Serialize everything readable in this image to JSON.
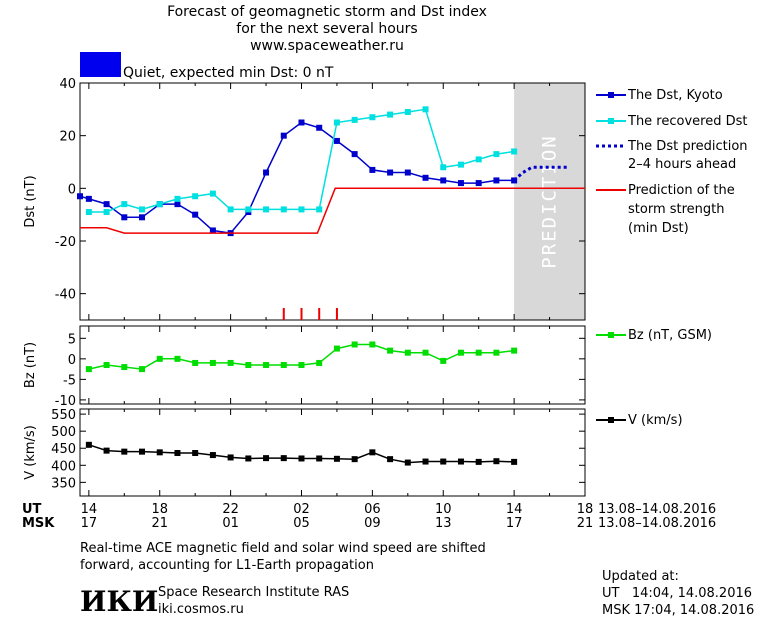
{
  "header": {
    "title_lines": [
      "Forecast of geomagnetic storm and Dst index",
      "for the next several hours",
      "www.spaceweather.ru"
    ],
    "status_text": "Quiet, expected min Dst: 0 nT",
    "status_color": "#0000ee"
  },
  "chart_data": [
    {
      "type": "line",
      "ylabel": "Dst (nT)",
      "ylim": [
        -50,
        40
      ],
      "yticks": [
        40,
        20,
        0,
        -20,
        -40
      ],
      "x_unit": "hours, UT",
      "xlim": [
        13.5,
        42
      ],
      "prediction_shade_from": 38,
      "prediction_label": "PREDICTION",
      "series": [
        {
          "name": "The Dst, Kyoto",
          "color": "#0000cc",
          "x": [
            13.5,
            14,
            15,
            16,
            17,
            18,
            19,
            20,
            21,
            22,
            23,
            24,
            25,
            26,
            27,
            28,
            29,
            30,
            31,
            32,
            33,
            34,
            35,
            36,
            37,
            38
          ],
          "values": [
            -3,
            -4,
            -6,
            -11,
            -11,
            -6,
            -6,
            -10,
            -16,
            -17,
            -9,
            6,
            20,
            25,
            23,
            18,
            13,
            7,
            6,
            6,
            4,
            3,
            2,
            2,
            3,
            3
          ]
        },
        {
          "name": "The recovered Dst",
          "color": "#00e0e0",
          "x": [
            14,
            15,
            16,
            17,
            18,
            19,
            20,
            21,
            22,
            23,
            24,
            25,
            26,
            27,
            28,
            29,
            30,
            31,
            32,
            33,
            34,
            35,
            36,
            37,
            38
          ],
          "values": [
            -9,
            -9,
            -6,
            -8,
            -6,
            -4,
            -3,
            -2,
            -8,
            -8,
            -8,
            -8,
            -8,
            -8,
            25,
            26,
            27,
            28,
            29,
            30,
            8,
            9,
            11,
            13,
            14
          ]
        },
        {
          "name": "The Dst prediction 2–4 hours ahead",
          "color": "#0000cc",
          "x": [
            38,
            38.5,
            39,
            39.5,
            40,
            40.5,
            41
          ],
          "values": [
            3,
            6,
            8,
            8,
            8,
            8,
            8
          ]
        },
        {
          "name": "Prediction of the storm strength (min Dst)",
          "color": "#ee0000",
          "x": [
            13.5,
            15,
            16,
            22,
            23,
            26.9,
            27.9,
            42
          ],
          "values": [
            -15,
            -15,
            -17,
            -17,
            -17,
            -17,
            0,
            0
          ]
        }
      ],
      "storm_markers": [
        25,
        26,
        27,
        28
      ]
    },
    {
      "type": "line",
      "ylabel": "Bz (nT)",
      "ylim": [
        -11,
        8
      ],
      "yticks": [
        5,
        0,
        -5,
        -10
      ],
      "series": [
        {
          "name": "Bz (nT, GSM)",
          "color": "#00dd00",
          "x": [
            14,
            15,
            16,
            17,
            18,
            19,
            20,
            21,
            22,
            23,
            24,
            25,
            26,
            27,
            28,
            29,
            30,
            31,
            32,
            33,
            34,
            35,
            36,
            37,
            38
          ],
          "values": [
            -2.5,
            -1.5,
            -2,
            -2.5,
            0,
            0,
            -1,
            -1,
            -1,
            -1.5,
            -1.5,
            -1.5,
            -1.5,
            -1,
            2.5,
            3.5,
            3.5,
            2,
            1.5,
            1.5,
            -0.5,
            1.5,
            1.5,
            1.5,
            2
          ]
        }
      ]
    },
    {
      "type": "line",
      "ylabel": "V (km/s)",
      "ylim": [
        310,
        565
      ],
      "yticks": [
        550,
        500,
        450,
        400,
        350
      ],
      "series": [
        {
          "name": "V (km/s)",
          "color": "#000000",
          "x": [
            14,
            15,
            16,
            17,
            18,
            19,
            20,
            21,
            22,
            23,
            24,
            25,
            26,
            27,
            28,
            29,
            30,
            31,
            32,
            33,
            34,
            35,
            36,
            37,
            38
          ],
          "values": [
            460,
            443,
            440,
            440,
            438,
            436,
            436,
            430,
            423,
            420,
            421,
            421,
            420,
            420,
            419,
            418,
            438,
            418,
            408,
            411,
            411,
            411,
            410,
            412,
            410
          ]
        }
      ]
    }
  ],
  "legends": {
    "dst": [
      "The Dst, Kyoto",
      "The recovered Dst",
      "The Dst prediction",
      "2–4 hours ahead",
      "Prediction of the",
      "storm strength",
      "(min Dst)"
    ],
    "bz": "Bz (nT, GSM)",
    "v": "V (km/s)"
  },
  "x_axis": {
    "ut_label": "UT",
    "msk_label": "MSK",
    "ut_ticks": [
      "14",
      "18",
      "22",
      "02",
      "06",
      "10",
      "14",
      "18"
    ],
    "msk_ticks": [
      "17",
      "21",
      "01",
      "05",
      "09",
      "13",
      "17",
      "21"
    ],
    "date_range": "13.08–14.08.2016"
  },
  "footer": {
    "note_lines": [
      "Real-time ACE magnetic field and solar wind speed are shifted",
      "forward, accounting for L1-Earth propagation"
    ],
    "logo": "ИКИ",
    "institute": "Space Research Institute RAS",
    "site": "iki.cosmos.ru",
    "updated_label": "Updated at:",
    "updated_ut": "UT   14:04, 14.08.2016",
    "updated_msk": "MSK 17:04, 14.08.2016"
  }
}
